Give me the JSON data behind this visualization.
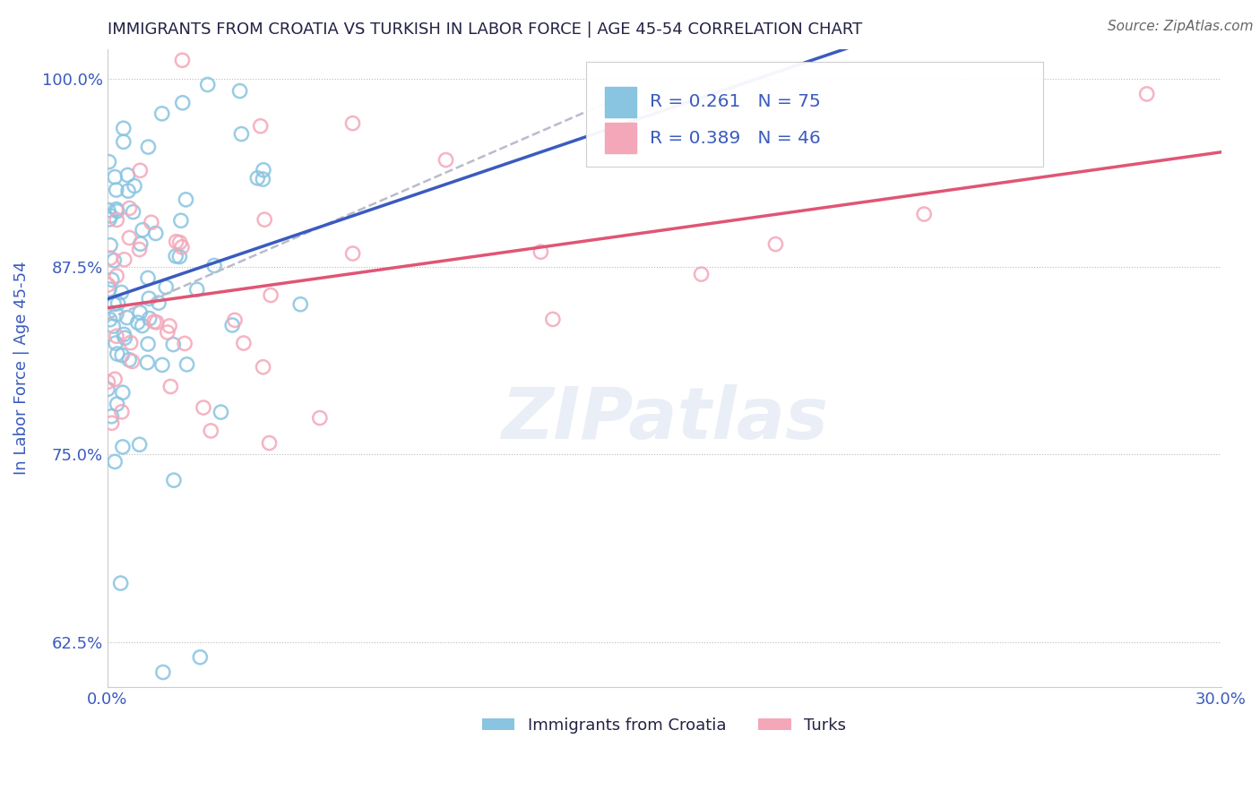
{
  "title": "IMMIGRANTS FROM CROATIA VS TURKISH IN LABOR FORCE | AGE 45-54 CORRELATION CHART",
  "source": "Source: ZipAtlas.com",
  "ylabel": "In Labor Force | Age 45-54",
  "xlim": [
    0.0,
    0.3
  ],
  "ylim": [
    0.595,
    1.02
  ],
  "xticks": [
    0.0,
    0.3
  ],
  "xticklabels": [
    "0.0%",
    "30.0%"
  ],
  "yticks": [
    0.625,
    0.75,
    0.875,
    1.0
  ],
  "yticklabels": [
    "62.5%",
    "75.0%",
    "87.5%",
    "100.0%"
  ],
  "croatia_color": "#89c4e1",
  "turks_color": "#f4a7b9",
  "croatia_line_color": "#3a5bbf",
  "turks_line_color": "#e05575",
  "croatia_dash_color": "#aaaacc",
  "r_croatia": 0.261,
  "n_croatia": 75,
  "r_turks": 0.389,
  "n_turks": 46,
  "legend_label_croatia": "Immigrants from Croatia",
  "legend_label_turks": "Turks",
  "background_color": "#ffffff",
  "grid_color": "#bbbbbb",
  "watermark_text": "ZIPatlas",
  "title_color": "#222244",
  "label_color": "#3a5bbf",
  "tick_color": "#3a5bbf",
  "source_color": "#666666",
  "legend_text_color": "#3a5bbf"
}
